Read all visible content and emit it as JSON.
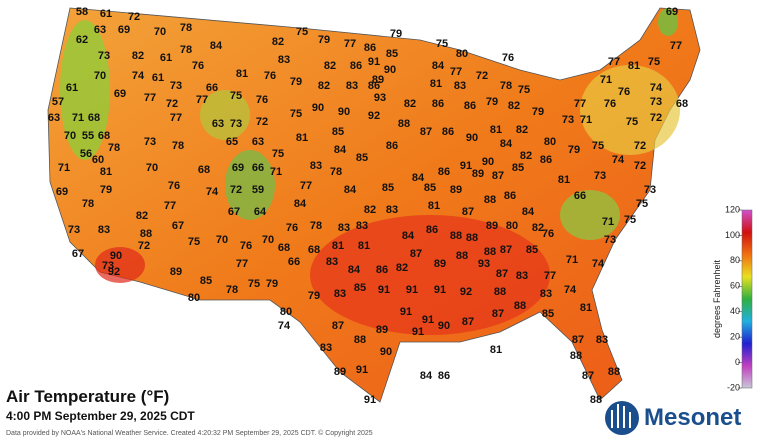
{
  "title": "Air Temperature (°F)",
  "subtitle": "4:00 PM September 29, 2025 CDT",
  "footer": "Data provided by NOAA's National Weather Service. Created 4:20:32 PM September 29, 2025 CDT. © Copyright 2025",
  "logo": "Mesonet",
  "colorbar": {
    "label": "degrees Fahrenheit",
    "lim": [
      -20,
      120
    ],
    "ticks": [
      -20,
      0,
      20,
      40,
      60,
      80,
      100,
      120
    ],
    "colors": [
      "#c8c8d8",
      "#c040c0",
      "#2020d0",
      "#20b0e0",
      "#30b040",
      "#e8e020",
      "#f07010",
      "#d01010",
      "#d050d0"
    ]
  },
  "stations": [
    58,
    61,
    72,
    63,
    69,
    70,
    78,
    62,
    73,
    82,
    61,
    78,
    70,
    74,
    61,
    73,
    76,
    84,
    61,
    69,
    77,
    72,
    77,
    66,
    75,
    76,
    81,
    76,
    57,
    63,
    71,
    68,
    77,
    63,
    73,
    72,
    70,
    55,
    68,
    73,
    78,
    65,
    63,
    56,
    60,
    78,
    71,
    81,
    70,
    68,
    69,
    66,
    71,
    75,
    69,
    79,
    76,
    74,
    72,
    59,
    78,
    77,
    67,
    64,
    73,
    83,
    82,
    88,
    67,
    72,
    75,
    70,
    76,
    70,
    67,
    90,
    73,
    92,
    89,
    77,
    85,
    80,
    78,
    75,
    79,
    66,
    68,
    76,
    78,
    84,
    77,
    83,
    81,
    75,
    79,
    82,
    83,
    75,
    79,
    77,
    86,
    85,
    79,
    75,
    82,
    86,
    91,
    90,
    82,
    83,
    86,
    89,
    90,
    90,
    92,
    93,
    85,
    88,
    82,
    86,
    86,
    84,
    77,
    80,
    72,
    76,
    83,
    81,
    78,
    75,
    79,
    82,
    79,
    84,
    85,
    86,
    87,
    86,
    90,
    81,
    82,
    73,
    71,
    77,
    76,
    75,
    72,
    80,
    79,
    75,
    74,
    72,
    72,
    73,
    76,
    74,
    73,
    68,
    71,
    77,
    81,
    75,
    77,
    69,
    78,
    84,
    85,
    84,
    86,
    91,
    90,
    84,
    82,
    86,
    81,
    73,
    66,
    71,
    75,
    75,
    82,
    83,
    81,
    87,
    88,
    86,
    84,
    82,
    76,
    85,
    89,
    89,
    87,
    85,
    83,
    81,
    83,
    84,
    86,
    88,
    88,
    89,
    80,
    68,
    83,
    81,
    87,
    88,
    87,
    85,
    84,
    86,
    82,
    89,
    88,
    93,
    87,
    83,
    77,
    71,
    74,
    73,
    83,
    79,
    85,
    91,
    91,
    91,
    92,
    88,
    83,
    74,
    80,
    74,
    87,
    88,
    89,
    91,
    91,
    91,
    90,
    87,
    87,
    88,
    85,
    81,
    83,
    90,
    81,
    87,
    83,
    88,
    87,
    88,
    89,
    91,
    84,
    86,
    91,
    88
  ]
}
